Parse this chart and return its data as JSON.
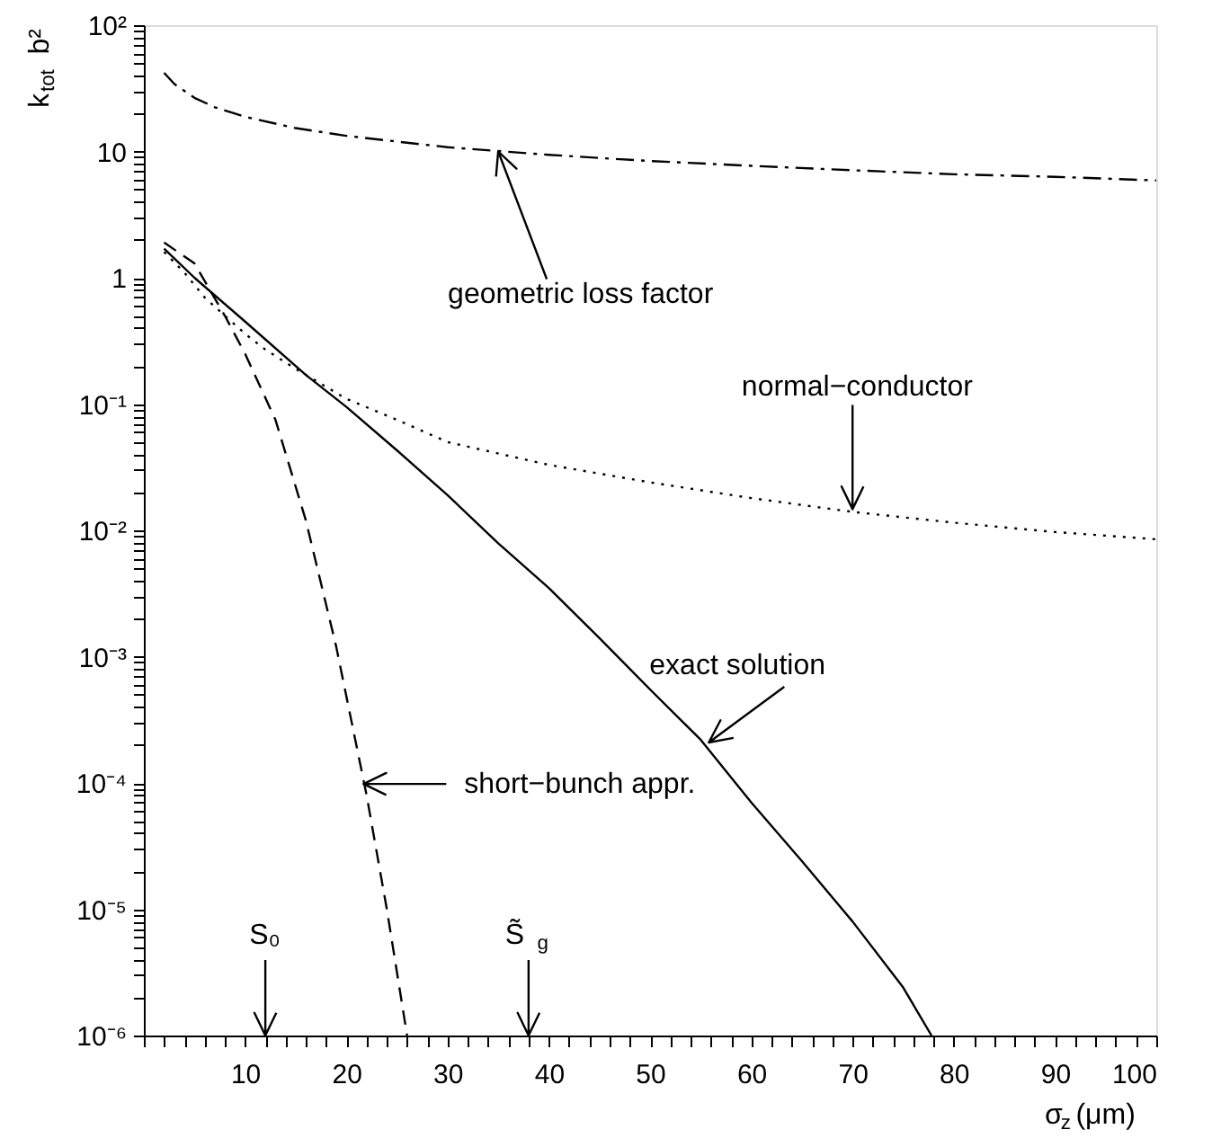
{
  "chart_data": {
    "type": "line",
    "xlabel": "σ$_{z}$ (μm)",
    "ylabel": "k$_{tot}$b²",
    "log": "y",
    "xlim": [
      0,
      100
    ],
    "ylim": [
      1e-06,
      100
    ],
    "xticks": [
      {
        "value": 0,
        "label": null
      },
      {
        "value": 2,
        "label": null
      },
      {
        "value": 4,
        "label": null
      },
      {
        "value": 6,
        "label": null
      },
      {
        "value": 8,
        "label": null
      },
      10,
      {
        "value": 12,
        "label": null
      },
      {
        "value": 14,
        "label": null
      },
      {
        "value": 16,
        "label": null
      },
      {
        "value": 18,
        "label": null
      },
      20,
      {
        "value": 22,
        "label": null
      },
      {
        "value": 24,
        "label": null
      },
      {
        "value": 26,
        "label": null
      },
      {
        "value": 28,
        "label": null
      },
      30,
      {
        "value": 32,
        "label": null
      },
      {
        "value": 34,
        "label": null
      },
      {
        "value": 36,
        "label": null
      },
      {
        "value": 38,
        "label": null
      },
      40,
      {
        "value": 42,
        "label": null
      },
      {
        "value": 44,
        "label": null
      },
      {
        "value": 46,
        "label": null
      },
      {
        "value": 48,
        "label": null
      },
      50,
      {
        "value": 52,
        "label": null
      },
      {
        "value": 54,
        "label": null
      },
      {
        "value": 56,
        "label": null
      },
      {
        "value": 58,
        "label": null
      },
      60,
      {
        "value": 62,
        "label": null
      },
      {
        "value": 64,
        "label": null
      },
      {
        "value": 66,
        "label": null
      },
      {
        "value": 68,
        "label": null
      },
      70,
      {
        "value": 72,
        "label": null
      },
      {
        "value": 74,
        "label": null
      },
      {
        "value": 76,
        "label": null
      },
      {
        "value": 78,
        "label": null
      },
      80,
      {
        "value": 82,
        "label": null
      },
      {
        "value": 84,
        "label": null
      },
      {
        "value": 86,
        "label": null
      },
      {
        "value": 88,
        "label": null
      },
      90,
      {
        "value": 92,
        "label": null
      },
      {
        "value": 94,
        "label": null
      },
      {
        "value": 96,
        "label": null
      },
      {
        "value": 98,
        "label": null
      },
      100
    ],
    "yticks": [
      {
        "value": 1e-06,
        "label": "10⁻⁶"
      },
      {
        "value": 2e-06,
        "label": null
      },
      {
        "value": 3e-06,
        "label": null
      },
      {
        "value": 4e-06,
        "label": null
      },
      {
        "value": 5e-06,
        "label": null
      },
      {
        "value": 6e-06,
        "label": null
      },
      {
        "value": 7e-06,
        "label": null
      },
      {
        "value": 8e-06,
        "label": null
      },
      {
        "value": 9e-06,
        "label": null
      },
      {
        "value": 1e-05,
        "label": "10⁻⁵"
      },
      {
        "value": 2e-05,
        "label": null
      },
      {
        "value": 3e-05,
        "label": null
      },
      {
        "value": 4e-05,
        "label": null
      },
      {
        "value": 5e-05,
        "label": null
      },
      {
        "value": 6e-05,
        "label": null
      },
      {
        "value": 7e-05,
        "label": null
      },
      {
        "value": 8e-05,
        "label": null
      },
      {
        "value": 9e-05,
        "label": null
      },
      {
        "value": 0.0001,
        "label": "10⁻⁴"
      },
      {
        "value": 0.0002,
        "label": null
      },
      {
        "value": 0.0003,
        "label": null
      },
      {
        "value": 0.0004,
        "label": null
      },
      {
        "value": 0.0005,
        "label": null
      },
      {
        "value": 0.0006,
        "label": null
      },
      {
        "value": 0.0007,
        "label": null
      },
      {
        "value": 0.0008,
        "label": null
      },
      {
        "value": 0.0009,
        "label": null
      },
      {
        "value": 0.001,
        "label": "10⁻³"
      },
      {
        "value": 0.002,
        "label": null
      },
      {
        "value": 0.003,
        "label": null
      },
      {
        "value": 0.004,
        "label": null
      },
      {
        "value": 0.005,
        "label": null
      },
      {
        "value": 0.006,
        "label": null
      },
      {
        "value": 0.007,
        "label": null
      },
      {
        "value": 0.008,
        "label": null
      },
      {
        "value": 0.009,
        "label": null
      },
      {
        "value": 0.01,
        "label": "10⁻²"
      },
      {
        "value": 0.02,
        "label": null
      },
      {
        "value": 0.03,
        "label": null
      },
      {
        "value": 0.04,
        "label": null
      },
      {
        "value": 0.05,
        "label": null
      },
      {
        "value": 0.06,
        "label": null
      },
      {
        "value": 0.07,
        "label": null
      },
      {
        "value": 0.08,
        "label": null
      },
      {
        "value": 0.09,
        "label": null
      },
      {
        "value": 0.1,
        "label": "10⁻¹"
      },
      {
        "value": 0.2,
        "label": null
      },
      {
        "value": 0.3,
        "label": null
      },
      {
        "value": 0.4,
        "label": null
      },
      {
        "value": 0.5,
        "label": null
      },
      {
        "value": 0.6,
        "label": null
      },
      {
        "value": 0.7,
        "label": null
      },
      {
        "value": 0.8,
        "label": null
      },
      {
        "value": 0.9,
        "label": null
      },
      1,
      {
        "value": 2,
        "label": null
      },
      {
        "value": 3,
        "label": null
      },
      {
        "value": 4,
        "label": null
      },
      {
        "value": 5,
        "label": null
      },
      {
        "value": 6,
        "label": null
      },
      {
        "value": 7,
        "label": null
      },
      {
        "value": 8,
        "label": null
      },
      {
        "value": 9,
        "label": null
      },
      10,
      {
        "value": 20,
        "label": null
      },
      {
        "value": 30,
        "label": null
      },
      {
        "value": 40,
        "label": null
      },
      {
        "value": 50,
        "label": null
      },
      {
        "value": 60,
        "label": null
      },
      {
        "value": 70,
        "label": null
      },
      {
        "value": 80,
        "label": null
      },
      {
        "value": 90,
        "label": null
      },
      {
        "value": 100,
        "label": "10²"
      }
    ],
    "grid": false,
    "series": [
      {
        "color": "#000000",
        "line_style": "dashdot",
        "x": [
          2,
          3,
          5,
          7,
          10,
          15,
          20,
          30,
          40,
          50,
          60,
          70,
          80,
          90,
          100
        ],
        "values": [
          42,
          34.3,
          26.6,
          22.4,
          18.8,
          15.3,
          13.3,
          10.8,
          9.4,
          8.4,
          7.7,
          7.1,
          6.6,
          6.3,
          5.9
        ]
      },
      {
        "color": "#000000",
        "line_style": "dotted",
        "x": [
          2,
          4,
          6,
          8,
          10,
          12,
          15,
          20,
          25,
          30,
          40,
          50,
          60,
          70,
          80,
          90,
          100
        ],
        "values": [
          1.6,
          1.1,
          0.7,
          0.5,
          0.36,
          0.27,
          0.19,
          0.11,
          0.075,
          0.05,
          0.033,
          0.024,
          0.018,
          0.014,
          0.0115,
          0.0097,
          0.0085
        ]
      },
      {
        "color": "#000000",
        "line_style": "solid",
        "x": [
          2,
          5,
          10,
          16,
          20,
          25,
          30,
          35,
          40,
          45,
          50,
          55,
          60,
          65,
          70,
          75,
          77.8
        ],
        "values": [
          1.7,
          1.0,
          0.45,
          0.17,
          0.095,
          0.043,
          0.019,
          0.0079,
          0.0035,
          0.0014,
          0.00055,
          0.00022,
          7e-05,
          2.4e-05,
          8e-06,
          2.4e-06,
          1e-06
        ]
      },
      {
        "color": "#000000",
        "line_style": "dashed",
        "x": [
          2,
          5,
          8,
          10,
          13,
          16,
          19,
          22,
          24,
          26
        ],
        "values": [
          1.9,
          1.3,
          0.5,
          0.25,
          0.075,
          0.012,
          0.0012,
          8e-05,
          1e-05,
          1e-06
        ]
      }
    ],
    "annotations": [
      "geometric loss factor",
      "normal−conductor",
      "exact solution",
      "short−bunch appr.",
      "S₀",
      "S̃$_{g}$"
    ]
  }
}
